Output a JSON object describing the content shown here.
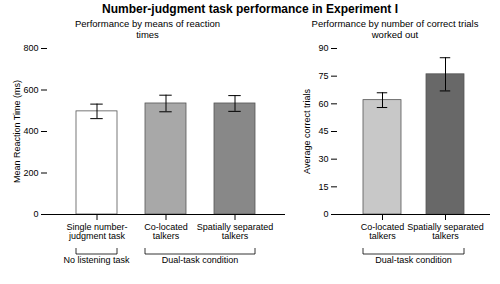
{
  "title": "Number-judgment task performance in Experiment I",
  "chart_data": [
    {
      "type": "bar",
      "title": "Performance by means of reaction\ntimes",
      "ylabel": "Mean Reaction Time (ms)",
      "categories": [
        "Single number-\njudgment task",
        "Co-located\ntalkers",
        "Spatially separated\ntalkers"
      ],
      "values": [
        497,
        535,
        535
      ],
      "errors": [
        35,
        40,
        38
      ],
      "colors": [
        "#ffffff",
        "#a8a8a8",
        "#888888"
      ],
      "ylim": [
        0,
        800
      ],
      "yticks": [
        0,
        200,
        400,
        600,
        800
      ],
      "brackets": [
        {
          "label": "No listening task",
          "categories": [
            "Single number-\njudgment task"
          ]
        },
        {
          "label": "Dual-task condition",
          "categories": [
            "Co-located\ntalkers",
            "Spatially separated\ntalkers"
          ]
        }
      ]
    },
    {
      "type": "bar",
      "title": "Performance by number of correct trials\nworked out",
      "ylabel": "Average correct trials",
      "categories": [
        "Co-located\ntalkers",
        "Spatially separated\ntalkers"
      ],
      "values": [
        62,
        76
      ],
      "errors": [
        4,
        9
      ],
      "colors": [
        "#c8c8c8",
        "#686868"
      ],
      "ylim": [
        0,
        90
      ],
      "yticks": [
        0,
        15,
        30,
        45,
        60,
        75,
        90
      ],
      "brackets": [
        {
          "label": "Dual-task condition",
          "categories": [
            "Co-located\ntalkers",
            "Spatially separated\ntalkers"
          ]
        }
      ]
    }
  ]
}
